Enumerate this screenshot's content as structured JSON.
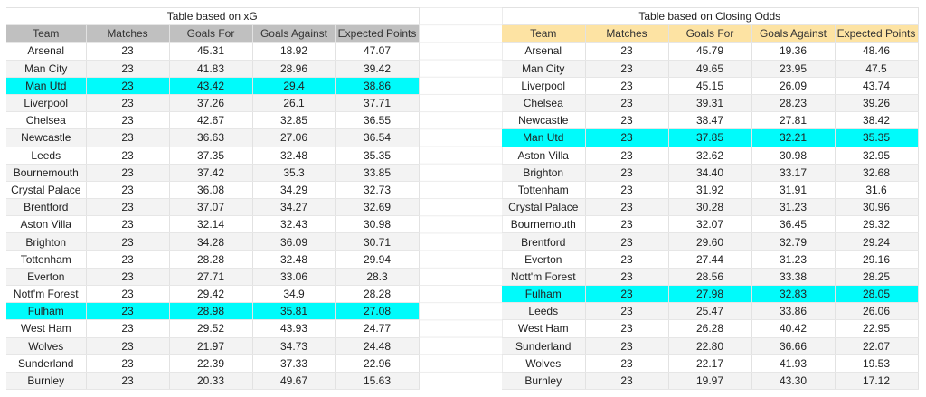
{
  "colors": {
    "header_xg": "#c0c0c0",
    "header_odds": "#fde3a3",
    "highlight": "#00fbfb"
  },
  "columns": [
    "Team",
    "Matches",
    "Goals For",
    "Goals Against",
    "Expected Points"
  ],
  "highlight_teams": [
    "Man Utd",
    "Fulham"
  ],
  "xg_table": {
    "title": "Table based on xG",
    "rows": [
      [
        "Arsenal",
        "23",
        "45.31",
        "18.92",
        "47.07"
      ],
      [
        "Man City",
        "23",
        "41.83",
        "28.96",
        "39.42"
      ],
      [
        "Man Utd",
        "23",
        "43.42",
        "29.4",
        "38.86"
      ],
      [
        "Liverpool",
        "23",
        "37.26",
        "26.1",
        "37.71"
      ],
      [
        "Chelsea",
        "23",
        "42.67",
        "32.85",
        "36.55"
      ],
      [
        "Newcastle",
        "23",
        "36.63",
        "27.06",
        "36.54"
      ],
      [
        "Leeds",
        "23",
        "37.35",
        "32.48",
        "35.35"
      ],
      [
        "Bournemouth",
        "23",
        "37.42",
        "35.3",
        "33.85"
      ],
      [
        "Crystal Palace",
        "23",
        "36.08",
        "34.29",
        "32.73"
      ],
      [
        "Brentford",
        "23",
        "37.07",
        "34.27",
        "32.69"
      ],
      [
        "Aston Villa",
        "23",
        "32.14",
        "32.43",
        "30.98"
      ],
      [
        "Brighton",
        "23",
        "34.28",
        "36.09",
        "30.71"
      ],
      [
        "Tottenham",
        "23",
        "28.28",
        "32.48",
        "29.94"
      ],
      [
        "Everton",
        "23",
        "27.71",
        "33.06",
        "28.3"
      ],
      [
        "Nott'm Forest",
        "23",
        "29.42",
        "34.9",
        "28.28"
      ],
      [
        "Fulham",
        "23",
        "28.98",
        "35.81",
        "27.08"
      ],
      [
        "West Ham",
        "23",
        "29.52",
        "43.93",
        "24.77"
      ],
      [
        "Wolves",
        "23",
        "21.97",
        "34.73",
        "24.48"
      ],
      [
        "Sunderland",
        "23",
        "22.39",
        "37.33",
        "22.96"
      ],
      [
        "Burnley",
        "23",
        "20.33",
        "49.67",
        "15.63"
      ]
    ]
  },
  "odds_table": {
    "title": "Table based on Closing Odds",
    "rows": [
      [
        "Arsenal",
        "23",
        "45.79",
        "19.36",
        "48.46"
      ],
      [
        "Man City",
        "23",
        "49.65",
        "23.95",
        "47.5"
      ],
      [
        "Liverpool",
        "23",
        "45.15",
        "26.09",
        "43.74"
      ],
      [
        "Chelsea",
        "23",
        "39.31",
        "28.23",
        "39.26"
      ],
      [
        "Newcastle",
        "23",
        "38.47",
        "27.81",
        "38.42"
      ],
      [
        "Man Utd",
        "23",
        "37.85",
        "32.21",
        "35.35"
      ],
      [
        "Aston Villa",
        "23",
        "32.62",
        "30.98",
        "32.95"
      ],
      [
        "Brighton",
        "23",
        "34.40",
        "33.17",
        "32.68"
      ],
      [
        "Tottenham",
        "23",
        "31.92",
        "31.91",
        "31.6"
      ],
      [
        "Crystal Palace",
        "23",
        "30.28",
        "31.23",
        "30.96"
      ],
      [
        "Bournemouth",
        "23",
        "32.07",
        "36.45",
        "29.32"
      ],
      [
        "Brentford",
        "23",
        "29.60",
        "32.79",
        "29.24"
      ],
      [
        "Everton",
        "23",
        "27.44",
        "31.23",
        "29.16"
      ],
      [
        "Nott'm Forest",
        "23",
        "28.56",
        "33.38",
        "28.25"
      ],
      [
        "Fulham",
        "23",
        "27.98",
        "32.83",
        "28.05"
      ],
      [
        "Leeds",
        "23",
        "25.47",
        "33.86",
        "26.06"
      ],
      [
        "West Ham",
        "23",
        "26.28",
        "40.42",
        "22.95"
      ],
      [
        "Sunderland",
        "23",
        "22.80",
        "36.66",
        "22.07"
      ],
      [
        "Wolves",
        "23",
        "22.17",
        "41.93",
        "19.53"
      ],
      [
        "Burnley",
        "23",
        "19.97",
        "43.30",
        "17.12"
      ]
    ]
  }
}
